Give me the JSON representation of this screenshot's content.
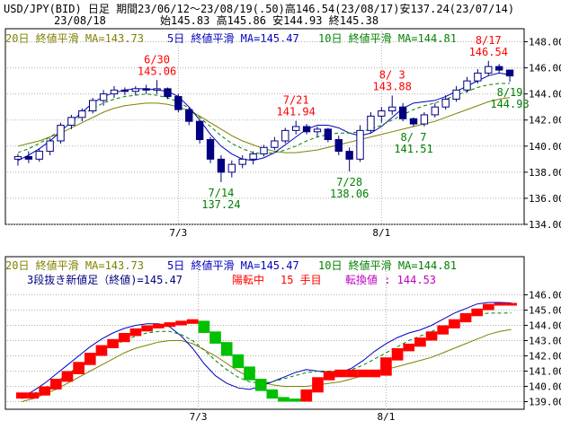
{
  "header": {
    "line1": "USD/JPY(BID) 日足 期間23/06/12～23/08/19(.50)高146.54(23/08/17)安137.24(23/07/14)",
    "date": "23/08/18",
    "ohlc": "始145.83 高145.86 安144.93 終145.38"
  },
  "colors": {
    "ma20": "#808000",
    "ma5": "#0000c0",
    "ma10": "#008000",
    "candle_up": "#ffffff",
    "candle_down": "#000080",
    "brick_up": "#ff0000",
    "brick_down": "#00c000",
    "annotation_high": "#ff0000",
    "annotation_low": "#008000",
    "switch_label": "#c000c0"
  },
  "top_legend": {
    "ma20": "20日 終値平滑 MA=143.73",
    "ma5": "5日 終値平滑 MA=145.47",
    "ma10": "10日 終値平滑 MA=144.81"
  },
  "bottom_legend": {
    "ma20": "20日 終値平滑 MA=143.73",
    "ma5": "5日 終値平滑 MA=145.47",
    "ma10": "10日 終値平滑 MA=144.81"
  },
  "brick_info": {
    "main": "3段抜き新値足（終値)=145.47",
    "state": "陽転中",
    "count": "15 手目",
    "switch": "転換値 : 144.53"
  },
  "chart_data": [
    {
      "type": "candlestick",
      "title": "USD/JPY(BID) 日足",
      "ylim": [
        134,
        149
      ],
      "yticks": [
        "134.00",
        "136.00",
        "138.00",
        "140.00",
        "142.00",
        "144.00",
        "146.00",
        "148.00"
      ],
      "xticks": [
        "7/3",
        "8/1"
      ],
      "series": [
        {
          "name": "20日 終値平滑",
          "values": [
            140.0,
            140.2,
            140.4,
            140.7,
            141.0,
            141.4,
            141.8,
            142.2,
            142.6,
            142.9,
            143.1,
            143.2,
            143.3,
            143.3,
            143.2,
            143.0,
            142.7,
            142.3,
            141.8,
            141.3,
            140.8,
            140.4,
            140.1,
            139.8,
            139.6,
            139.5,
            139.5,
            139.6,
            139.7,
            139.9,
            140.1,
            140.3,
            140.5,
            140.7,
            140.9,
            141.1,
            141.3,
            141.5,
            141.7,
            141.9,
            142.2,
            142.5,
            142.8,
            143.1,
            143.4,
            143.6,
            143.73
          ]
        },
        {
          "name": "5日 終値平滑",
          "values": [
            138.9,
            139.3,
            139.8,
            140.4,
            141.1,
            141.9,
            142.6,
            143.3,
            143.8,
            144.1,
            144.3,
            144.4,
            144.4,
            144.3,
            144.2,
            143.8,
            143.0,
            142.0,
            140.9,
            140.0,
            139.4,
            139.0,
            138.9,
            139.1,
            139.5,
            140.1,
            140.7,
            141.3,
            141.6,
            141.6,
            141.4,
            141.0,
            140.8,
            141.0,
            141.5,
            142.2,
            142.9,
            143.3,
            143.4,
            143.5,
            143.8,
            144.2,
            144.6,
            145.0,
            145.4,
            145.6,
            145.47
          ]
        },
        {
          "name": "10日 終値平滑",
          "values": [
            139.5,
            139.8,
            140.2,
            140.7,
            141.2,
            141.8,
            142.4,
            142.9,
            143.3,
            143.6,
            143.8,
            143.9,
            144.0,
            143.9,
            143.7,
            143.4,
            142.9,
            142.2,
            141.5,
            140.8,
            140.2,
            139.8,
            139.5,
            139.4,
            139.5,
            139.7,
            140.0,
            140.4,
            140.7,
            140.9,
            141.0,
            141.0,
            141.1,
            141.3,
            141.6,
            142.0,
            142.4,
            142.8,
            143.1,
            143.3,
            143.6,
            143.9,
            144.2,
            144.5,
            144.7,
            144.8,
            144.81
          ]
        }
      ],
      "candles": [
        {
          "o": 139.0,
          "h": 139.4,
          "l": 138.5,
          "c": 139.2
        },
        {
          "o": 139.2,
          "h": 139.6,
          "l": 138.7,
          "c": 139.0
        },
        {
          "o": 139.0,
          "h": 139.8,
          "l": 138.8,
          "c": 139.6
        },
        {
          "o": 139.6,
          "h": 140.6,
          "l": 139.3,
          "c": 140.4
        },
        {
          "o": 140.4,
          "h": 141.8,
          "l": 140.2,
          "c": 141.6
        },
        {
          "o": 141.6,
          "h": 142.4,
          "l": 141.3,
          "c": 142.2
        },
        {
          "o": 142.2,
          "h": 142.9,
          "l": 141.9,
          "c": 142.7
        },
        {
          "o": 142.7,
          "h": 143.7,
          "l": 142.5,
          "c": 143.5
        },
        {
          "o": 143.5,
          "h": 144.3,
          "l": 143.1,
          "c": 144.0
        },
        {
          "o": 144.0,
          "h": 144.6,
          "l": 143.7,
          "c": 144.3
        },
        {
          "o": 144.3,
          "h": 144.5,
          "l": 143.9,
          "c": 144.2
        },
        {
          "o": 144.2,
          "h": 144.6,
          "l": 143.9,
          "c": 144.4
        },
        {
          "o": 144.4,
          "h": 144.7,
          "l": 144.0,
          "c": 144.3
        },
        {
          "o": 144.3,
          "h": 145.06,
          "l": 144.0,
          "c": 144.4
        },
        {
          "o": 144.4,
          "h": 144.5,
          "l": 143.6,
          "c": 143.8
        },
        {
          "o": 143.8,
          "h": 144.0,
          "l": 142.6,
          "c": 142.8
        },
        {
          "o": 142.8,
          "h": 143.0,
          "l": 141.6,
          "c": 141.9
        },
        {
          "o": 141.9,
          "h": 142.0,
          "l": 140.2,
          "c": 140.5
        },
        {
          "o": 140.5,
          "h": 140.7,
          "l": 138.7,
          "c": 139.0
        },
        {
          "o": 139.0,
          "h": 139.3,
          "l": 137.24,
          "c": 138.0
        },
        {
          "o": 138.0,
          "h": 138.9,
          "l": 137.6,
          "c": 138.6
        },
        {
          "o": 138.6,
          "h": 139.3,
          "l": 138.3,
          "c": 139.0
        },
        {
          "o": 139.0,
          "h": 139.6,
          "l": 138.6,
          "c": 139.4
        },
        {
          "o": 139.4,
          "h": 140.1,
          "l": 139.2,
          "c": 139.9
        },
        {
          "o": 139.9,
          "h": 140.7,
          "l": 139.7,
          "c": 140.4
        },
        {
          "o": 140.4,
          "h": 141.4,
          "l": 140.2,
          "c": 141.2
        },
        {
          "o": 141.2,
          "h": 141.94,
          "l": 140.9,
          "c": 141.5
        },
        {
          "o": 141.5,
          "h": 141.7,
          "l": 140.9,
          "c": 141.1
        },
        {
          "o": 141.1,
          "h": 141.5,
          "l": 140.7,
          "c": 141.3
        },
        {
          "o": 141.3,
          "h": 141.4,
          "l": 140.3,
          "c": 140.5
        },
        {
          "o": 140.5,
          "h": 140.8,
          "l": 139.3,
          "c": 139.6
        },
        {
          "o": 139.6,
          "h": 139.9,
          "l": 138.06,
          "c": 139.0
        },
        {
          "o": 139.0,
          "h": 141.6,
          "l": 138.8,
          "c": 141.2
        },
        {
          "o": 141.2,
          "h": 142.6,
          "l": 141.0,
          "c": 142.3
        },
        {
          "o": 142.3,
          "h": 143.0,
          "l": 141.8,
          "c": 142.7
        },
        {
          "o": 142.7,
          "h": 143.88,
          "l": 142.4,
          "c": 143.0
        },
        {
          "o": 143.0,
          "h": 143.3,
          "l": 141.9,
          "c": 142.1
        },
        {
          "o": 142.1,
          "h": 142.2,
          "l": 141.51,
          "c": 141.7
        },
        {
          "o": 141.7,
          "h": 142.6,
          "l": 141.5,
          "c": 142.4
        },
        {
          "o": 142.4,
          "h": 143.3,
          "l": 142.2,
          "c": 143.0
        },
        {
          "o": 143.0,
          "h": 143.9,
          "l": 142.8,
          "c": 143.6
        },
        {
          "o": 143.6,
          "h": 144.6,
          "l": 143.4,
          "c": 144.3
        },
        {
          "o": 144.3,
          "h": 145.3,
          "l": 144.1,
          "c": 145.0
        },
        {
          "o": 145.0,
          "h": 145.9,
          "l": 144.8,
          "c": 145.6
        },
        {
          "o": 145.6,
          "h": 146.54,
          "l": 145.4,
          "c": 146.1
        },
        {
          "o": 146.1,
          "h": 146.3,
          "l": 145.6,
          "c": 145.83
        },
        {
          "o": 145.83,
          "h": 145.86,
          "l": 144.93,
          "c": 145.38
        }
      ],
      "annotations": [
        {
          "date": "6/30",
          "value": "145.06",
          "kind": "high",
          "i": 13
        },
        {
          "date": "7/14",
          "value": "137.24",
          "kind": "low",
          "i": 19
        },
        {
          "date": "7/21",
          "value": "141.94",
          "kind": "high",
          "i": 26
        },
        {
          "date": "7/28",
          "value": "138.06",
          "kind": "low",
          "i": 31
        },
        {
          "date": "8/ 3",
          "value": "143.88",
          "kind": "high",
          "i": 35
        },
        {
          "date": "8/ 7",
          "value": "141.51",
          "kind": "low",
          "i": 37
        },
        {
          "date": "8/17",
          "value": "146.54",
          "kind": "high",
          "i": 44
        },
        {
          "date": "8/19",
          "value": "144.93",
          "kind": "low",
          "i": 46
        }
      ]
    },
    {
      "type": "bar",
      "title": "3段抜き新値足（終値)",
      "ylim": [
        138.5,
        146.5
      ],
      "yticks": [
        "139.00",
        "140.00",
        "141.00",
        "142.00",
        "143.00",
        "144.00",
        "145.00",
        "146.00"
      ],
      "xticks": [
        "7/3",
        "8/1"
      ],
      "series": [
        {
          "name": "20日 終値平滑",
          "values": [
            139.0,
            139.2,
            139.5,
            139.8,
            140.2,
            140.6,
            141.0,
            141.4,
            141.8,
            142.2,
            142.5,
            142.7,
            142.9,
            143.0,
            143.0,
            142.8,
            142.4,
            142.0,
            141.5,
            141.0,
            140.6,
            140.3,
            140.1,
            140.0,
            140.0,
            140.0,
            140.1,
            140.2,
            140.3,
            140.5,
            140.7,
            140.9,
            141.1,
            141.3,
            141.5,
            141.7,
            141.9,
            142.2,
            142.5,
            142.8,
            143.1,
            143.4,
            143.6,
            143.73
          ]
        },
        {
          "name": "5日 終値平滑",
          "values": [
            139.3,
            139.7,
            140.2,
            140.8,
            141.4,
            142.0,
            142.6,
            143.1,
            143.5,
            143.8,
            144.0,
            144.1,
            144.1,
            143.9,
            143.3,
            142.5,
            141.5,
            140.7,
            140.2,
            139.9,
            139.8,
            140.0,
            140.3,
            140.6,
            140.9,
            141.1,
            141.0,
            140.9,
            140.9,
            141.2,
            141.7,
            142.3,
            142.8,
            143.2,
            143.5,
            143.7,
            144.0,
            144.4,
            144.8,
            145.1,
            145.4,
            145.5,
            145.5,
            145.47
          ]
        },
        {
          "name": "10日 終値平滑",
          "values": [
            139.2,
            139.5,
            139.9,
            140.3,
            140.8,
            141.3,
            141.8,
            142.3,
            142.7,
            143.0,
            143.3,
            143.5,
            143.6,
            143.6,
            143.4,
            143.0,
            142.4,
            141.7,
            141.1,
            140.6,
            140.3,
            140.2,
            140.3,
            140.5,
            140.7,
            140.9,
            141.0,
            141.0,
            141.0,
            141.1,
            141.4,
            141.8,
            142.2,
            142.6,
            143.0,
            143.3,
            143.6,
            143.9,
            144.2,
            144.5,
            144.7,
            144.8,
            144.8,
            144.81
          ]
        }
      ],
      "bricks": [
        {
          "low": 139.2,
          "high": 139.6,
          "up": true
        },
        {
          "low": 139.2,
          "high": 139.6,
          "up": true
        },
        {
          "low": 139.4,
          "high": 140.0,
          "up": true
        },
        {
          "low": 139.8,
          "high": 140.5,
          "up": true
        },
        {
          "low": 140.3,
          "high": 141.0,
          "up": true
        },
        {
          "low": 140.8,
          "high": 141.6,
          "up": true
        },
        {
          "low": 141.4,
          "high": 142.2,
          "up": true
        },
        {
          "low": 142.0,
          "high": 142.7,
          "up": true
        },
        {
          "low": 142.5,
          "high": 143.1,
          "up": true
        },
        {
          "low": 142.9,
          "high": 143.5,
          "up": true
        },
        {
          "low": 143.3,
          "high": 143.8,
          "up": true
        },
        {
          "low": 143.6,
          "high": 144.0,
          "up": true
        },
        {
          "low": 143.8,
          "high": 144.1,
          "up": true
        },
        {
          "low": 143.9,
          "high": 144.2,
          "up": true
        },
        {
          "low": 144.0,
          "high": 144.3,
          "up": true
        },
        {
          "low": 144.1,
          "high": 144.4,
          "up": true
        },
        {
          "low": 143.5,
          "high": 144.3,
          "up": false
        },
        {
          "low": 142.8,
          "high": 143.6,
          "up": false
        },
        {
          "low": 142.0,
          "high": 142.9,
          "up": false
        },
        {
          "low": 141.2,
          "high": 142.1,
          "up": false
        },
        {
          "low": 140.4,
          "high": 141.3,
          "up": false
        },
        {
          "low": 139.7,
          "high": 140.5,
          "up": false
        },
        {
          "low": 139.2,
          "high": 139.8,
          "up": false
        },
        {
          "low": 139.0,
          "high": 139.3,
          "up": false
        },
        {
          "low": 139.0,
          "high": 139.2,
          "up": false
        },
        {
          "low": 139.0,
          "high": 139.8,
          "up": true
        },
        {
          "low": 139.6,
          "high": 140.6,
          "up": true
        },
        {
          "low": 140.4,
          "high": 141.0,
          "up": true
        },
        {
          "low": 140.6,
          "high": 141.1,
          "up": true
        },
        {
          "low": 140.6,
          "high": 141.1,
          "up": true
        },
        {
          "low": 140.6,
          "high": 141.1,
          "up": true
        },
        {
          "low": 140.6,
          "high": 141.1,
          "up": true
        },
        {
          "low": 140.7,
          "high": 141.9,
          "up": true
        },
        {
          "low": 141.7,
          "high": 142.5,
          "up": true
        },
        {
          "low": 142.3,
          "high": 142.8,
          "up": true
        },
        {
          "low": 142.6,
          "high": 143.2,
          "up": true
        },
        {
          "low": 143.0,
          "high": 143.6,
          "up": true
        },
        {
          "low": 143.4,
          "high": 144.0,
          "up": true
        },
        {
          "low": 143.8,
          "high": 144.4,
          "up": true
        },
        {
          "low": 144.2,
          "high": 144.8,
          "up": true
        },
        {
          "low": 144.6,
          "high": 145.1,
          "up": true
        },
        {
          "low": 145.0,
          "high": 145.4,
          "up": true
        },
        {
          "low": 145.3,
          "high": 145.47,
          "up": true
        },
        {
          "low": 145.3,
          "high": 145.47,
          "up": true
        }
      ]
    }
  ]
}
